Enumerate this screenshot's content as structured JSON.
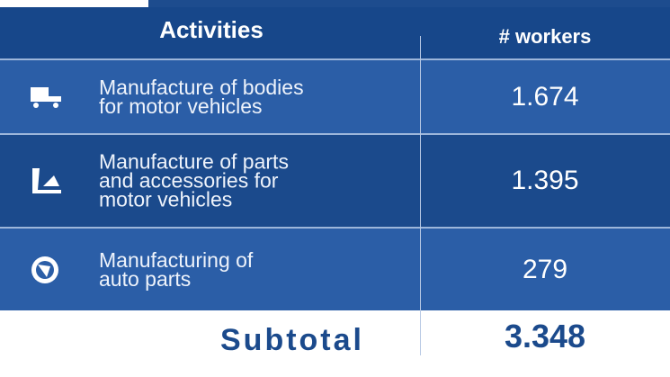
{
  "table": {
    "header": [
      "Activities",
      "# workers"
    ],
    "rows": [
      [
        "Manufacture of bodies\nfor motor vehicles",
        "1.674"
      ],
      [
        "Manufacture of parts\nand accessories for\nmotor vehicles",
        "1.395"
      ],
      [
        "Manufacturing of\nauto parts",
        "279"
      ]
    ],
    "footer": [
      "Subtotal",
      "3.348"
    ]
  }
}
